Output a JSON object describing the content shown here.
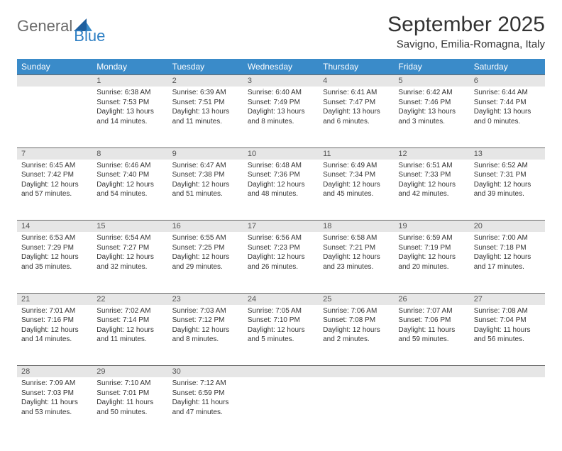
{
  "logo": {
    "general": "General",
    "blue": "Blue"
  },
  "title": "September 2025",
  "location": "Savigno, Emilia-Romagna, Italy",
  "colors": {
    "header_bg": "#3a8bc9",
    "daynum_bg": "#e6e6e6",
    "border": "#6a6a6a",
    "text": "#333333",
    "logo_gray": "#6b6b6b",
    "logo_blue": "#2d7fc4"
  },
  "day_headers": [
    "Sunday",
    "Monday",
    "Tuesday",
    "Wednesday",
    "Thursday",
    "Friday",
    "Saturday"
  ],
  "weeks": [
    {
      "nums": [
        "",
        "1",
        "2",
        "3",
        "4",
        "5",
        "6"
      ],
      "cells": [
        {},
        {
          "sunrise": "Sunrise: 6:38 AM",
          "sunset": "Sunset: 7:53 PM",
          "day1": "Daylight: 13 hours",
          "day2": "and 14 minutes."
        },
        {
          "sunrise": "Sunrise: 6:39 AM",
          "sunset": "Sunset: 7:51 PM",
          "day1": "Daylight: 13 hours",
          "day2": "and 11 minutes."
        },
        {
          "sunrise": "Sunrise: 6:40 AM",
          "sunset": "Sunset: 7:49 PM",
          "day1": "Daylight: 13 hours",
          "day2": "and 8 minutes."
        },
        {
          "sunrise": "Sunrise: 6:41 AM",
          "sunset": "Sunset: 7:47 PM",
          "day1": "Daylight: 13 hours",
          "day2": "and 6 minutes."
        },
        {
          "sunrise": "Sunrise: 6:42 AM",
          "sunset": "Sunset: 7:46 PM",
          "day1": "Daylight: 13 hours",
          "day2": "and 3 minutes."
        },
        {
          "sunrise": "Sunrise: 6:44 AM",
          "sunset": "Sunset: 7:44 PM",
          "day1": "Daylight: 13 hours",
          "day2": "and 0 minutes."
        }
      ]
    },
    {
      "nums": [
        "7",
        "8",
        "9",
        "10",
        "11",
        "12",
        "13"
      ],
      "cells": [
        {
          "sunrise": "Sunrise: 6:45 AM",
          "sunset": "Sunset: 7:42 PM",
          "day1": "Daylight: 12 hours",
          "day2": "and 57 minutes."
        },
        {
          "sunrise": "Sunrise: 6:46 AM",
          "sunset": "Sunset: 7:40 PM",
          "day1": "Daylight: 12 hours",
          "day2": "and 54 minutes."
        },
        {
          "sunrise": "Sunrise: 6:47 AM",
          "sunset": "Sunset: 7:38 PM",
          "day1": "Daylight: 12 hours",
          "day2": "and 51 minutes."
        },
        {
          "sunrise": "Sunrise: 6:48 AM",
          "sunset": "Sunset: 7:36 PM",
          "day1": "Daylight: 12 hours",
          "day2": "and 48 minutes."
        },
        {
          "sunrise": "Sunrise: 6:49 AM",
          "sunset": "Sunset: 7:34 PM",
          "day1": "Daylight: 12 hours",
          "day2": "and 45 minutes."
        },
        {
          "sunrise": "Sunrise: 6:51 AM",
          "sunset": "Sunset: 7:33 PM",
          "day1": "Daylight: 12 hours",
          "day2": "and 42 minutes."
        },
        {
          "sunrise": "Sunrise: 6:52 AM",
          "sunset": "Sunset: 7:31 PM",
          "day1": "Daylight: 12 hours",
          "day2": "and 39 minutes."
        }
      ]
    },
    {
      "nums": [
        "14",
        "15",
        "16",
        "17",
        "18",
        "19",
        "20"
      ],
      "cells": [
        {
          "sunrise": "Sunrise: 6:53 AM",
          "sunset": "Sunset: 7:29 PM",
          "day1": "Daylight: 12 hours",
          "day2": "and 35 minutes."
        },
        {
          "sunrise": "Sunrise: 6:54 AM",
          "sunset": "Sunset: 7:27 PM",
          "day1": "Daylight: 12 hours",
          "day2": "and 32 minutes."
        },
        {
          "sunrise": "Sunrise: 6:55 AM",
          "sunset": "Sunset: 7:25 PM",
          "day1": "Daylight: 12 hours",
          "day2": "and 29 minutes."
        },
        {
          "sunrise": "Sunrise: 6:56 AM",
          "sunset": "Sunset: 7:23 PM",
          "day1": "Daylight: 12 hours",
          "day2": "and 26 minutes."
        },
        {
          "sunrise": "Sunrise: 6:58 AM",
          "sunset": "Sunset: 7:21 PM",
          "day1": "Daylight: 12 hours",
          "day2": "and 23 minutes."
        },
        {
          "sunrise": "Sunrise: 6:59 AM",
          "sunset": "Sunset: 7:19 PM",
          "day1": "Daylight: 12 hours",
          "day2": "and 20 minutes."
        },
        {
          "sunrise": "Sunrise: 7:00 AM",
          "sunset": "Sunset: 7:18 PM",
          "day1": "Daylight: 12 hours",
          "day2": "and 17 minutes."
        }
      ]
    },
    {
      "nums": [
        "21",
        "22",
        "23",
        "24",
        "25",
        "26",
        "27"
      ],
      "cells": [
        {
          "sunrise": "Sunrise: 7:01 AM",
          "sunset": "Sunset: 7:16 PM",
          "day1": "Daylight: 12 hours",
          "day2": "and 14 minutes."
        },
        {
          "sunrise": "Sunrise: 7:02 AM",
          "sunset": "Sunset: 7:14 PM",
          "day1": "Daylight: 12 hours",
          "day2": "and 11 minutes."
        },
        {
          "sunrise": "Sunrise: 7:03 AM",
          "sunset": "Sunset: 7:12 PM",
          "day1": "Daylight: 12 hours",
          "day2": "and 8 minutes."
        },
        {
          "sunrise": "Sunrise: 7:05 AM",
          "sunset": "Sunset: 7:10 PM",
          "day1": "Daylight: 12 hours",
          "day2": "and 5 minutes."
        },
        {
          "sunrise": "Sunrise: 7:06 AM",
          "sunset": "Sunset: 7:08 PM",
          "day1": "Daylight: 12 hours",
          "day2": "and 2 minutes."
        },
        {
          "sunrise": "Sunrise: 7:07 AM",
          "sunset": "Sunset: 7:06 PM",
          "day1": "Daylight: 11 hours",
          "day2": "and 59 minutes."
        },
        {
          "sunrise": "Sunrise: 7:08 AM",
          "sunset": "Sunset: 7:04 PM",
          "day1": "Daylight: 11 hours",
          "day2": "and 56 minutes."
        }
      ]
    },
    {
      "nums": [
        "28",
        "29",
        "30",
        "",
        "",
        "",
        ""
      ],
      "cells": [
        {
          "sunrise": "Sunrise: 7:09 AM",
          "sunset": "Sunset: 7:03 PM",
          "day1": "Daylight: 11 hours",
          "day2": "and 53 minutes."
        },
        {
          "sunrise": "Sunrise: 7:10 AM",
          "sunset": "Sunset: 7:01 PM",
          "day1": "Daylight: 11 hours",
          "day2": "and 50 minutes."
        },
        {
          "sunrise": "Sunrise: 7:12 AM",
          "sunset": "Sunset: 6:59 PM",
          "day1": "Daylight: 11 hours",
          "day2": "and 47 minutes."
        },
        {},
        {},
        {},
        {}
      ]
    }
  ]
}
